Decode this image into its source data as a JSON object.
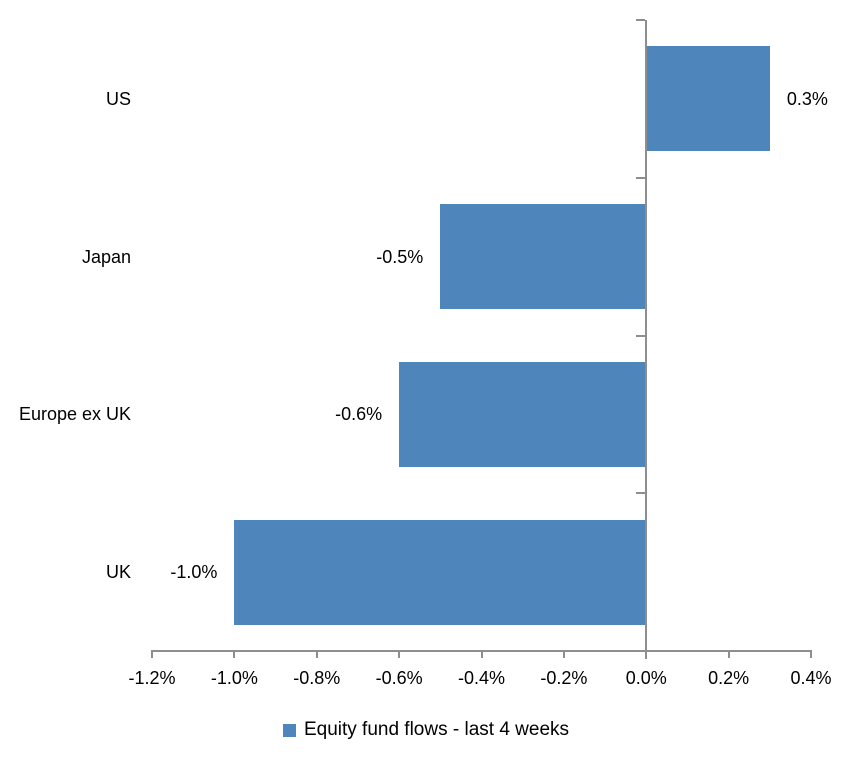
{
  "chart_data": {
    "type": "bar",
    "orientation": "horizontal",
    "title": "",
    "xlabel": "",
    "ylabel": "",
    "categories": [
      "US",
      "Japan",
      "Europe ex UK",
      "UK"
    ],
    "series": [
      {
        "name": "Equity fund flows - last 4 weeks",
        "values": [
          0.3,
          -0.5,
          -0.6,
          -1.0
        ],
        "data_labels": [
          "0.3%",
          "-0.5%",
          "-0.6%",
          "-1.0%"
        ]
      }
    ],
    "xlim": [
      -1.2,
      0.4
    ],
    "x_ticks": [
      -1.2,
      -1.0,
      -0.8,
      -0.6,
      -0.4,
      -0.2,
      0.0,
      0.2,
      0.4
    ],
    "x_tick_labels": [
      "-1.2%",
      "-1.0%",
      "-0.8%",
      "-0.6%",
      "-0.4%",
      "-0.2%",
      "0.0%",
      "0.2%",
      "0.4%"
    ],
    "grid": false,
    "legend_position": "bottom",
    "colors": {
      "bar": "#4E86BC",
      "axis": "#8E8E8E",
      "text": "#000000",
      "background": "#FFFFFF"
    }
  },
  "legend": {
    "label": "Equity fund flows - last 4 weeks"
  }
}
